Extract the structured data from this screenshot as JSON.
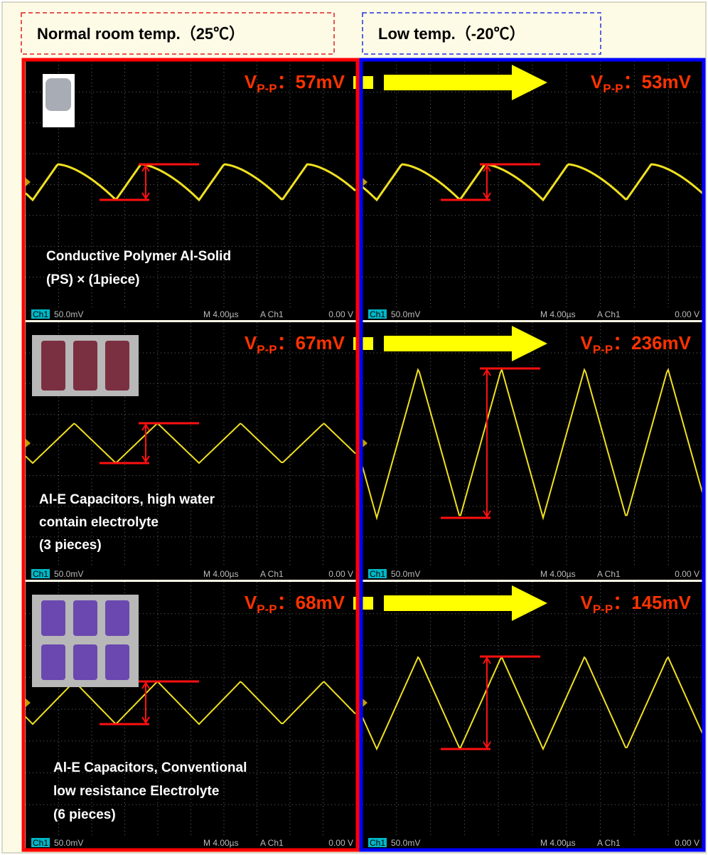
{
  "header": {
    "left": "Normal room temp.（25℃）",
    "right": "Low temp.（-20℃）"
  },
  "rows": [
    {
      "caption": [
        "Conductive Polymer Al-Solid",
        "(PS) × (1piece)"
      ],
      "left": {
        "symbol": "V",
        "subscript": "P-P",
        "reading": "：57mV"
      },
      "right": {
        "symbol": "V",
        "subscript": "P-P",
        "reading": "：53mV"
      }
    },
    {
      "caption": [
        "Al-E Capacitors, high water",
        "contain electrolyte",
        "(3 pieces)"
      ],
      "left": {
        "symbol": "V",
        "subscript": "P-P",
        "reading": "：67mV"
      },
      "right": {
        "symbol": "V",
        "subscript": "P-P",
        "reading": "：236mV"
      }
    },
    {
      "caption": [
        "Al-E Capacitors, Conventional",
        "low resistance Electrolyte",
        " (6 pieces)"
      ],
      "left": {
        "symbol": "V",
        "subscript": "P-P",
        "reading": "：68mV"
      },
      "right": {
        "symbol": "V",
        "subscript": "P-P",
        "reading": "：145mV"
      }
    }
  ],
  "scope": {
    "channel": "Ch1",
    "scale": "50.0mV",
    "timebase": "M 4.00µs",
    "trigger": "A  Ch1",
    "level": "0.00 V"
  }
}
